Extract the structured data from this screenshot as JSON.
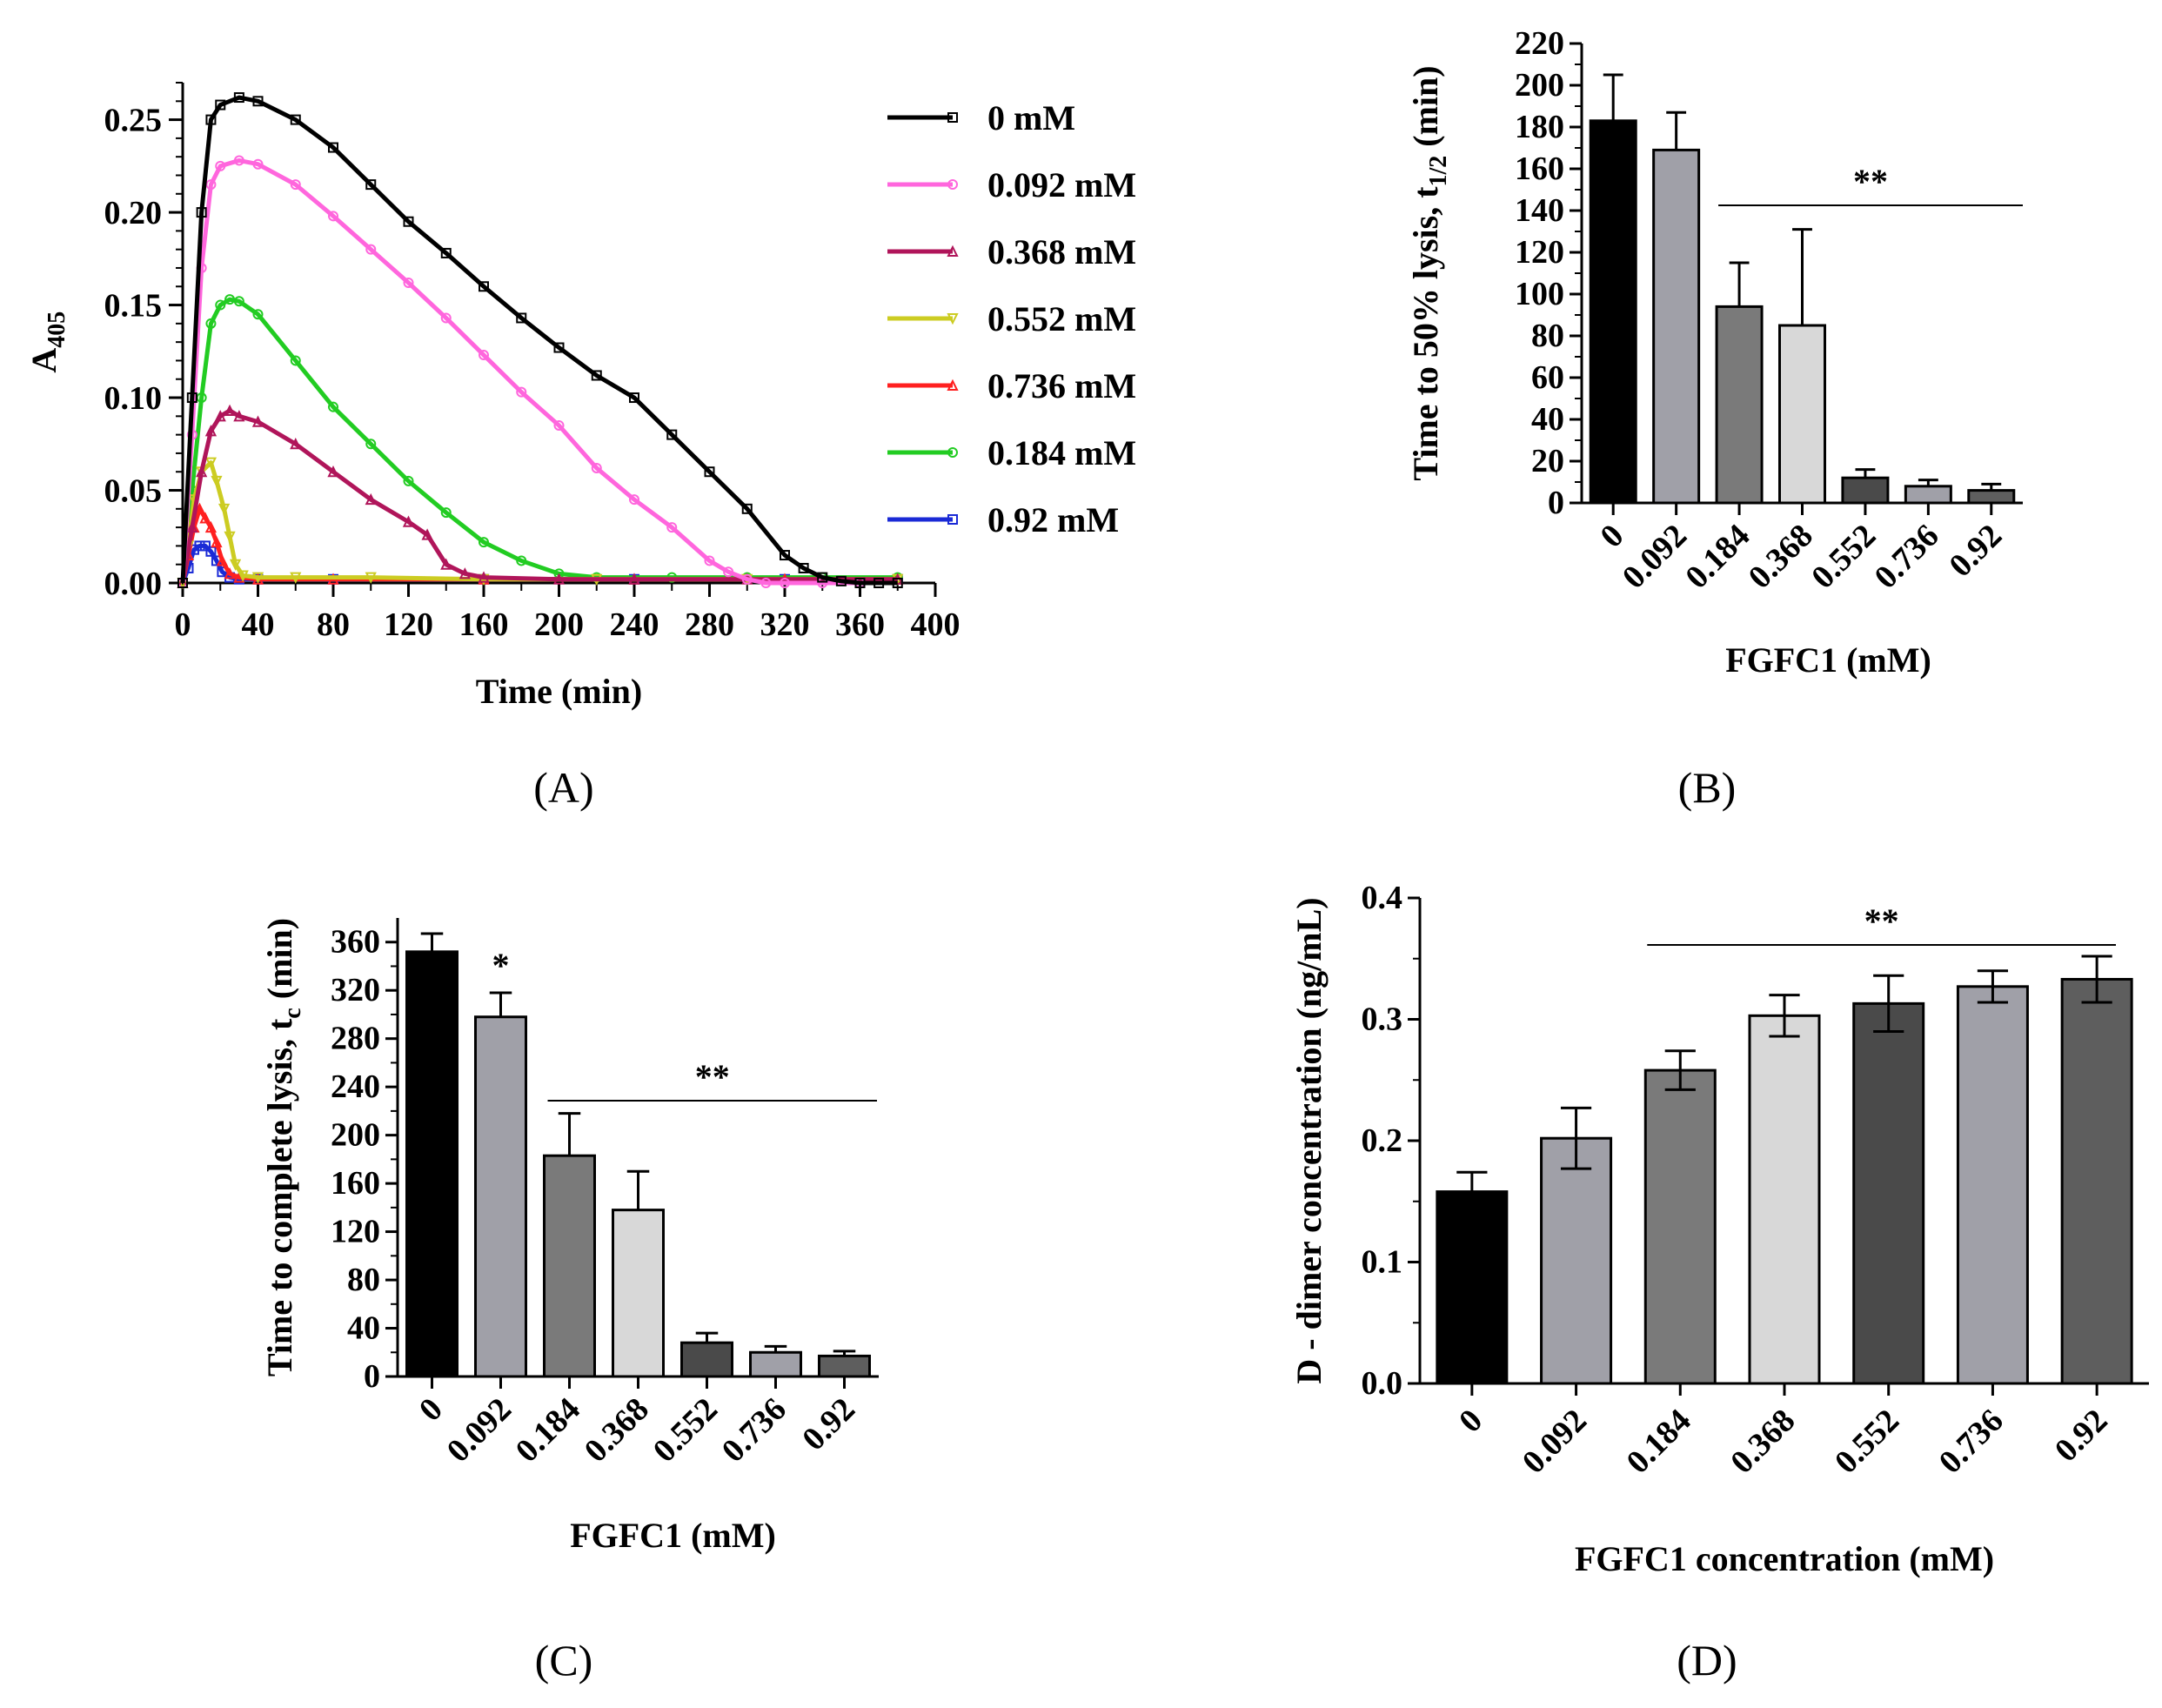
{
  "chart_data": [
    {
      "panel": "A",
      "panel_label": "(A)",
      "type": "line",
      "xlabel": "Time (min)",
      "ylabel": "A",
      "ylabel_sub": "405",
      "xlim": [
        0,
        400
      ],
      "ylim": [
        0,
        0.27
      ],
      "xticks": [
        0,
        40,
        80,
        120,
        160,
        200,
        240,
        280,
        320,
        360,
        400
      ],
      "yticks": [
        0.0,
        0.05,
        0.1,
        0.15,
        0.2,
        0.25
      ],
      "ytick_labels": [
        "0.00",
        "0.05",
        "0.10",
        "0.15",
        "0.20",
        "0.25"
      ],
      "legend_position": "right",
      "series": [
        {
          "name": "0 mM",
          "color": "#000000",
          "marker": "square",
          "x": [
            0,
            5,
            10,
            15,
            20,
            30,
            40,
            60,
            80,
            100,
            120,
            140,
            160,
            180,
            200,
            220,
            240,
            260,
            280,
            300,
            320,
            330,
            340,
            350,
            360,
            370,
            380
          ],
          "y": [
            0.0,
            0.1,
            0.2,
            0.25,
            0.258,
            0.262,
            0.26,
            0.25,
            0.235,
            0.215,
            0.195,
            0.178,
            0.16,
            0.143,
            0.127,
            0.112,
            0.1,
            0.08,
            0.06,
            0.04,
            0.015,
            0.008,
            0.003,
            0.001,
            0.0,
            0.0,
            0.0
          ]
        },
        {
          "name": "0.092 mM",
          "color": "#ff66dd",
          "marker": "circle",
          "x": [
            0,
            5,
            10,
            15,
            20,
            30,
            40,
            60,
            80,
            100,
            120,
            140,
            160,
            180,
            200,
            220,
            240,
            260,
            280,
            290,
            300,
            310,
            320,
            340,
            360
          ],
          "y": [
            0.0,
            0.08,
            0.17,
            0.215,
            0.225,
            0.228,
            0.226,
            0.215,
            0.198,
            0.18,
            0.162,
            0.143,
            0.123,
            0.103,
            0.085,
            0.062,
            0.045,
            0.03,
            0.012,
            0.006,
            0.002,
            0.0,
            0.0,
            0.0,
            0.0
          ]
        },
        {
          "name": "0.368 mM",
          "color": "#b0155a",
          "marker": "triangle-up",
          "x": [
            0,
            5,
            10,
            15,
            20,
            25,
            30,
            40,
            60,
            80,
            100,
            120,
            130,
            140,
            150,
            160,
            200,
            240,
            300,
            380
          ],
          "y": [
            0.0,
            0.03,
            0.06,
            0.082,
            0.09,
            0.093,
            0.09,
            0.087,
            0.075,
            0.06,
            0.045,
            0.033,
            0.026,
            0.01,
            0.005,
            0.003,
            0.002,
            0.002,
            0.002,
            0.002
          ]
        },
        {
          "name": "0.552 mM",
          "color": "#cccc22",
          "marker": "triangle-down",
          "x": [
            0,
            3,
            6,
            10,
            15,
            18,
            22,
            25,
            28,
            32,
            40,
            60,
            100,
            160,
            220,
            300,
            380
          ],
          "y": [
            0.0,
            0.02,
            0.045,
            0.06,
            0.065,
            0.055,
            0.04,
            0.025,
            0.01,
            0.004,
            0.003,
            0.003,
            0.003,
            0.002,
            0.002,
            0.002,
            0.002
          ]
        },
        {
          "name": "0.736 mM",
          "color": "#ff2020",
          "marker": "triangle-up",
          "x": [
            0,
            3,
            6,
            9,
            12,
            15,
            18,
            21,
            25,
            30,
            40,
            80,
            160,
            240,
            320,
            380
          ],
          "y": [
            0.0,
            0.015,
            0.03,
            0.04,
            0.035,
            0.03,
            0.022,
            0.012,
            0.005,
            0.003,
            0.002,
            0.002,
            0.002,
            0.002,
            0.002,
            0.002
          ]
        },
        {
          "name": "0.184 mM",
          "color": "#22cc22",
          "marker": "circle",
          "x": [
            0,
            5,
            10,
            15,
            20,
            25,
            30,
            40,
            60,
            80,
            100,
            120,
            140,
            160,
            180,
            200,
            220,
            260,
            300,
            340,
            380
          ],
          "y": [
            0.0,
            0.05,
            0.1,
            0.14,
            0.15,
            0.153,
            0.152,
            0.145,
            0.12,
            0.095,
            0.075,
            0.055,
            0.038,
            0.022,
            0.012,
            0.005,
            0.003,
            0.003,
            0.003,
            0.003,
            0.003
          ]
        },
        {
          "name": "0.92 mM",
          "color": "#1a2ad6",
          "marker": "square",
          "x": [
            0,
            3,
            6,
            9,
            12,
            15,
            18,
            21,
            25,
            30,
            40,
            80,
            160,
            240,
            320,
            380
          ],
          "y": [
            0.0,
            0.008,
            0.018,
            0.02,
            0.02,
            0.017,
            0.012,
            0.006,
            0.003,
            0.002,
            0.002,
            0.002,
            0.002,
            0.002,
            0.002,
            0.002
          ]
        }
      ]
    },
    {
      "panel": "B",
      "panel_label": "(B)",
      "type": "bar",
      "xlabel": "FGFC1 (mM)",
      "ylabel": "Time to 50% lysis, t",
      "ylabel_sub": "1/2",
      "ylabel_tail": " (min)",
      "ylim": [
        0,
        220
      ],
      "yticks": [
        0,
        20,
        40,
        60,
        80,
        100,
        120,
        140,
        160,
        180,
        200,
        220
      ],
      "categories": [
        "0",
        "0.092",
        "0.184",
        "0.368",
        "0.552",
        "0.736",
        "0.92"
      ],
      "values": [
        183,
        169,
        94,
        85,
        12,
        8,
        6
      ],
      "errors": [
        22,
        18,
        21,
        46,
        4,
        3,
        3
      ],
      "colors": [
        "#000000",
        "#a0a0a8",
        "#7a7a7a",
        "#d8d8d8",
        "#4a4a4a",
        "#a0a0a8",
        "#5e5e5e"
      ],
      "significance": [
        {
          "label": "**",
          "from": 2,
          "to": 6
        }
      ]
    },
    {
      "panel": "C",
      "panel_label": "(C)",
      "type": "bar",
      "xlabel": "FGFC1 (mM)",
      "ylabel": "Time to complete lysis, t",
      "ylabel_sub": "c",
      "ylabel_tail": " (min)",
      "ylim": [
        0,
        380
      ],
      "yticks": [
        0,
        40,
        80,
        120,
        160,
        200,
        240,
        280,
        320,
        360
      ],
      "categories": [
        "0",
        "0.092",
        "0.184",
        "0.368",
        "0.552",
        "0.736",
        "0.92"
      ],
      "values": [
        352,
        298,
        183,
        138,
        28,
        20,
        17
      ],
      "errors": [
        15,
        20,
        35,
        32,
        8,
        5,
        4
      ],
      "colors": [
        "#000000",
        "#a0a0a8",
        "#7a7a7a",
        "#d8d8d8",
        "#4a4a4a",
        "#a0a0a8",
        "#5e5e5e"
      ],
      "significance": [
        {
          "label": "*",
          "from": 1,
          "to": 1
        },
        {
          "label": "**",
          "from": 2,
          "to": 6
        }
      ]
    },
    {
      "panel": "D",
      "panel_label": "(D)",
      "type": "bar",
      "xlabel": "FGFC1 concentration (mM)",
      "ylabel": "D - dimer concentration (ng/mL)",
      "ylim": [
        0,
        0.4
      ],
      "yticks": [
        0.0,
        0.1,
        0.2,
        0.3,
        0.4
      ],
      "ytick_labels": [
        "0.0",
        "0.1",
        "0.2",
        "0.3",
        "0.4"
      ],
      "categories": [
        "0",
        "0.092",
        "0.184",
        "0.368",
        "0.552",
        "0.736",
        "0.92"
      ],
      "values": [
        0.158,
        0.202,
        0.258,
        0.303,
        0.313,
        0.327,
        0.333
      ],
      "errors": [
        0.016,
        0.025,
        0.016,
        0.017,
        0.023,
        0.013,
        0.019
      ],
      "colors": [
        "#000000",
        "#a0a0a8",
        "#7a7a7a",
        "#d8d8d8",
        "#4a4a4a",
        "#a0a0a8",
        "#5e5e5e"
      ],
      "significance": [
        {
          "label": "**",
          "from": 2,
          "to": 6
        }
      ]
    }
  ]
}
